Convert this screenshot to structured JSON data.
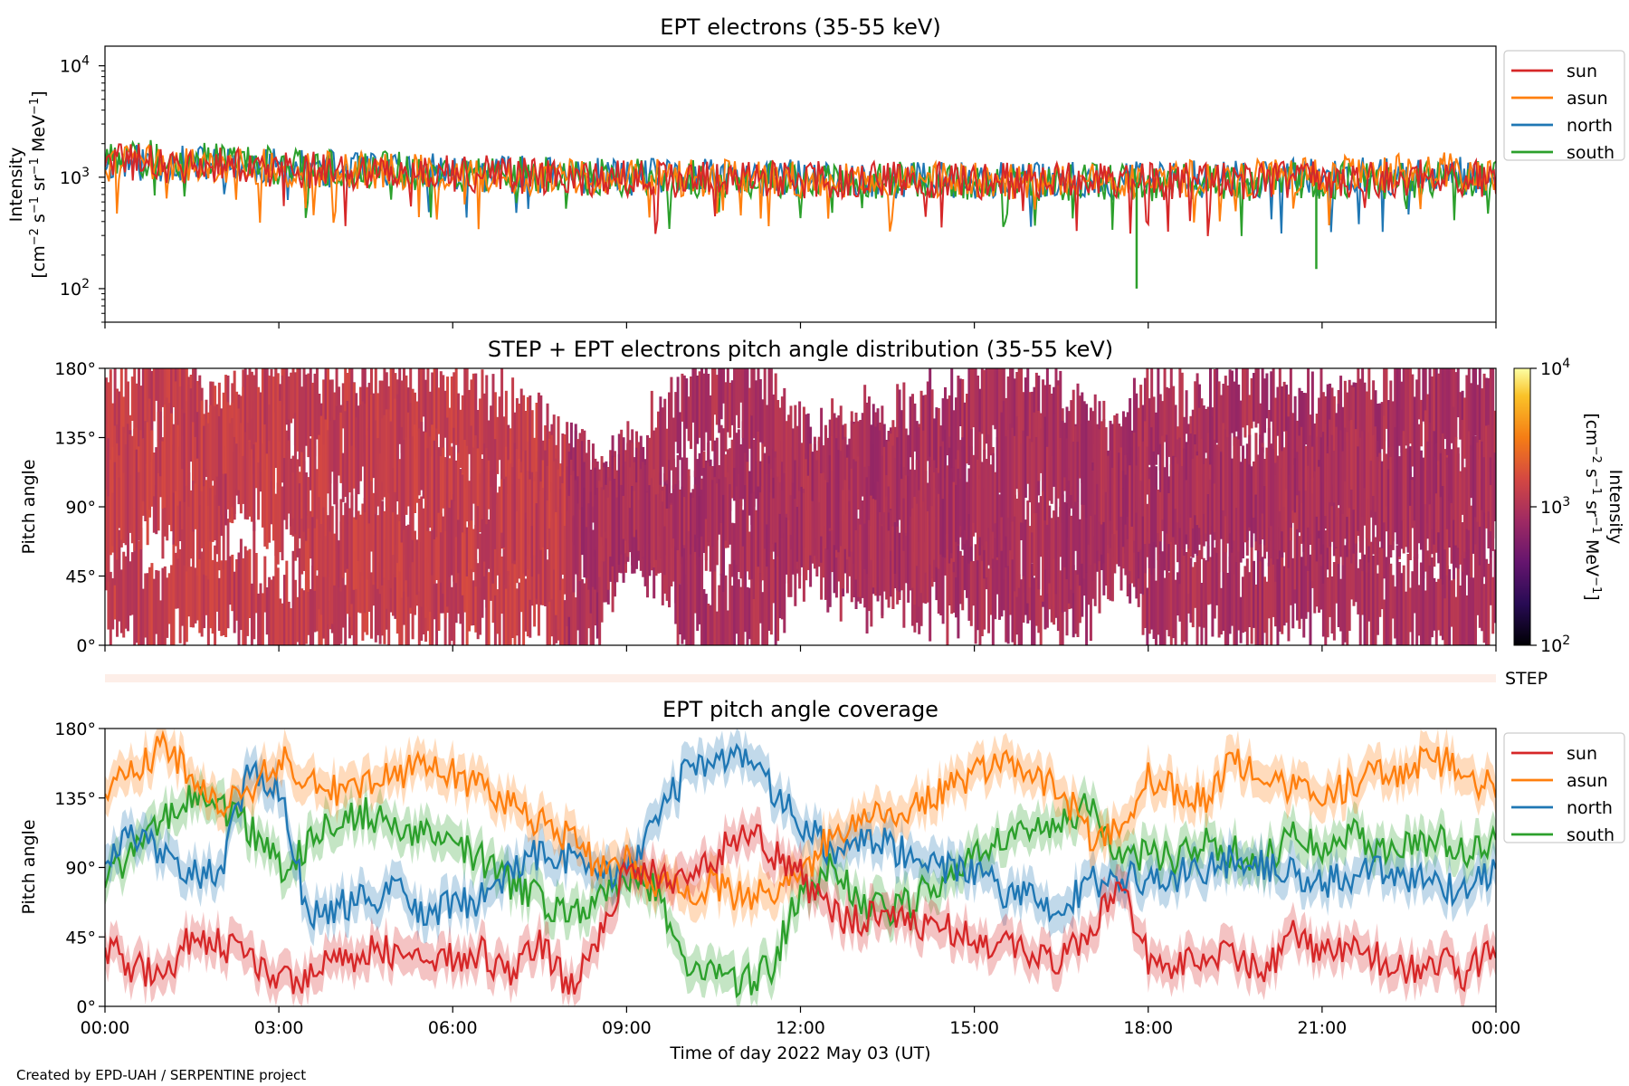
{
  "footer": {
    "credit": "Created by EPD-UAH / SERPENTINE project"
  },
  "colors": {
    "sun": "#d62728",
    "asun": "#ff7f0e",
    "north": "#1f77b4",
    "south": "#2ca02c",
    "step_band": "#fdeee8"
  },
  "x_axis": {
    "label": "Time of day 2022 May 03 (UT)",
    "ticks": [
      "00:00",
      "03:00",
      "06:00",
      "09:00",
      "12:00",
      "15:00",
      "18:00",
      "21:00",
      "00:00"
    ],
    "range_hours": [
      0,
      24
    ]
  },
  "panels": {
    "p1": {
      "title": "EPT electrons (35-55 keV)",
      "ylabel1": "Intensity"
    },
    "p2": {
      "title": "STEP + EPT electrons pitch angle distribution (35-55 keV)",
      "ylabel": "Pitch angle",
      "yticks": [
        "0°",
        "45°",
        "90°",
        "135°",
        "180°"
      ],
      "cbar_label": "Intensity"
    },
    "step": {
      "label": "STEP"
    },
    "p3": {
      "title": "EPT pitch angle coverage",
      "ylabel": "Pitch angle",
      "yticks": [
        "0°",
        "45°",
        "90°",
        "135°",
        "180°"
      ]
    }
  },
  "chart_data": [
    {
      "type": "line",
      "title": "EPT electrons (35-55 keV)",
      "ylabel": "Intensity [cm⁻² s⁻¹ sr⁻¹ MeV⁻¹]",
      "yscale": "log",
      "ylim": [
        50,
        15000
      ],
      "yticks": [
        100,
        1000,
        10000
      ],
      "xlim_hours": [
        0,
        24
      ],
      "legend": "outside-right",
      "x_hours": [
        0,
        1,
        2,
        3,
        4,
        5,
        6,
        7,
        8,
        9,
        10,
        11,
        12,
        13,
        14,
        15,
        16,
        17,
        18,
        19,
        20,
        21,
        22,
        23,
        24
      ],
      "series": [
        {
          "name": "sun",
          "values": [
            1400,
            1300,
            1250,
            1200,
            1150,
            1150,
            1100,
            1050,
            1000,
            980,
            970,
            960,
            950,
            950,
            940,
            930,
            930,
            920,
            920,
            930,
            940,
            950,
            960,
            980,
            950
          ]
        },
        {
          "name": "asun",
          "values": [
            1350,
            1300,
            1280,
            1200,
            1150,
            1120,
            1100,
            1050,
            1020,
            1000,
            980,
            970,
            960,
            950,
            950,
            940,
            930,
            940,
            950,
            980,
            1000,
            1050,
            1100,
            1150,
            1100
          ]
        },
        {
          "name": "north",
          "values": [
            1380,
            1320,
            1300,
            1220,
            1170,
            1130,
            1100,
            1060,
            1030,
            1000,
            990,
            980,
            970,
            960,
            950,
            950,
            940,
            940,
            950,
            960,
            980,
            1000,
            1020,
            1050,
            1000
          ]
        },
        {
          "name": "south",
          "values": [
            1450,
            1500,
            1400,
            1250,
            1180,
            1150,
            1100,
            1050,
            1020,
            1000,
            980,
            960,
            950,
            940,
            930,
            920,
            910,
            900,
            900,
            900,
            910,
            920,
            930,
            950,
            950
          ]
        }
      ],
      "annotations": [
        {
          "series": "south",
          "x_hours": 17.8,
          "min_value": 100
        },
        {
          "series": "south",
          "x_hours": 20.9,
          "min_value": 150
        }
      ]
    },
    {
      "type": "heatmap",
      "title": "STEP + EPT electrons pitch angle distribution (35-55 keV)",
      "ylabel": "Pitch angle",
      "ylim_deg": [
        0,
        180
      ],
      "xlim_hours": [
        0,
        24
      ],
      "colorbar": {
        "label": "Intensity [cm⁻² s⁻¹ sr⁻¹ MeV⁻¹]",
        "scale": "log",
        "range": [
          100,
          10000
        ],
        "ticks": [
          100,
          1000,
          10000
        ],
        "colormap": "inferno"
      }
    },
    {
      "type": "line",
      "title": "EPT pitch angle coverage",
      "ylabel": "Pitch angle",
      "ylim_deg": [
        0,
        180
      ],
      "yticks_deg": [
        0,
        45,
        90,
        135,
        180
      ],
      "xlim_hours": [
        0,
        24
      ],
      "legend": "outside-right",
      "x_hours": [
        0,
        0.5,
        1,
        1.5,
        2,
        2.5,
        3,
        3.5,
        4,
        4.5,
        5,
        5.5,
        6,
        6.5,
        7,
        7.5,
        8,
        8.5,
        9,
        9.5,
        10,
        10.5,
        11,
        11.5,
        12,
        12.5,
        13,
        13.5,
        14,
        14.5,
        15,
        15.5,
        16,
        16.5,
        17,
        17.5,
        18,
        18.5,
        19,
        19.5,
        20,
        20.5,
        21,
        21.5,
        22,
        22.5,
        23,
        23.5,
        24
      ],
      "series": [
        {
          "name": "sun",
          "values": [
            40,
            25,
            20,
            45,
            40,
            35,
            15,
            20,
            30,
            35,
            35,
            30,
            30,
            35,
            20,
            45,
            10,
            40,
            90,
            85,
            80,
            95,
            115,
            100,
            85,
            60,
            55,
            60,
            55,
            50,
            45,
            40,
            30,
            30,
            50,
            80,
            30,
            25,
            35,
            30,
            20,
            45,
            35,
            40,
            30,
            25,
            30,
            20,
            40
          ]
        },
        {
          "name": "asun",
          "values": [
            140,
            150,
            170,
            150,
            130,
            140,
            160,
            150,
            140,
            145,
            150,
            155,
            150,
            140,
            130,
            120,
            110,
            90,
            95,
            80,
            75,
            80,
            70,
            75,
            85,
            110,
            120,
            125,
            130,
            140,
            150,
            155,
            150,
            140,
            110,
            115,
            150,
            140,
            135,
            160,
            150,
            140,
            130,
            145,
            150,
            155,
            160,
            150,
            140
          ]
        },
        {
          "name": "north",
          "values": [
            95,
            110,
            100,
            85,
            90,
            155,
            140,
            60,
            65,
            70,
            75,
            60,
            65,
            70,
            85,
            100,
            95,
            90,
            85,
            120,
            150,
            160,
            165,
            140,
            120,
            100,
            110,
            105,
            95,
            90,
            85,
            75,
            70,
            65,
            80,
            85,
            80,
            85,
            90,
            95,
            90,
            85,
            80,
            85,
            90,
            85,
            80,
            75,
            90
          ]
        },
        {
          "name": "south",
          "values": [
            80,
            100,
            120,
            135,
            130,
            115,
            90,
            105,
            120,
            125,
            115,
            110,
            105,
            95,
            80,
            70,
            60,
            70,
            85,
            75,
            30,
            20,
            15,
            25,
            75,
            90,
            70,
            60,
            70,
            85,
            100,
            110,
            115,
            120,
            130,
            95,
            100,
            95,
            105,
            100,
            95,
            110,
            105,
            115,
            100,
            105,
            110,
            100,
            105
          ]
        }
      ]
    }
  ]
}
